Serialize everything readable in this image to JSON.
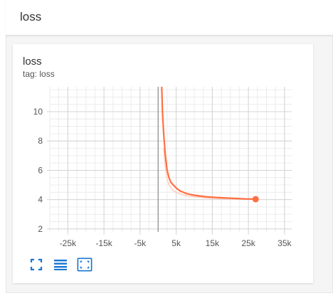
{
  "header": {
    "title": "loss"
  },
  "card": {
    "title": "loss",
    "tag": "tag: loss"
  },
  "toolbar": {
    "buttons": [
      {
        "icon": "fullscreen-icon"
      },
      {
        "icon": "list-lines-icon"
      },
      {
        "icon": "fit-domain-icon"
      }
    ]
  },
  "colors": {
    "accent": "#ff7043",
    "smoothed_raw": "#ffcdbd",
    "icon": "#1976d2"
  },
  "chart_data": {
    "type": "line",
    "title": "loss",
    "xlabel": "",
    "ylabel": "",
    "xlim": [
      -30000,
      37000
    ],
    "ylim": [
      1.8,
      11.7
    ],
    "x_ticks": [
      -25000,
      -15000,
      -5000,
      5000,
      15000,
      25000,
      35000
    ],
    "x_tick_labels": [
      "-25k",
      "-15k",
      "-5k",
      "5k",
      "15k",
      "25k",
      "35k"
    ],
    "y_ticks": [
      2,
      4,
      6,
      8,
      10
    ],
    "y_tick_labels": [
      "2",
      "4",
      "6",
      "8",
      "10"
    ],
    "grid": true,
    "series": [
      {
        "name": "",
        "style": "smoothed",
        "x": [
          900,
          1000,
          1200,
          1500,
          2000,
          2500,
          3000,
          3500,
          4000,
          5000,
          6000,
          8000,
          10000,
          13000,
          16000,
          20000,
          24000,
          27000
        ],
        "y": [
          12.2,
          11.7,
          10.0,
          8.6,
          7.0,
          6.0,
          5.5,
          5.2,
          5.05,
          4.8,
          4.6,
          4.4,
          4.3,
          4.2,
          4.15,
          4.1,
          4.05,
          4.03
        ]
      },
      {
        "name": "",
        "style": "raw",
        "x": [
          1500,
          2000,
          2500,
          3000,
          3500,
          4000,
          5000,
          6000,
          8000,
          10000,
          13000,
          16000,
          20000,
          24000
        ],
        "y": [
          7.5,
          6.2,
          5.4,
          5.0,
          4.8,
          4.65,
          4.5,
          4.4,
          4.25,
          4.2,
          4.12,
          4.08,
          4.05,
          4.02
        ]
      }
    ],
    "last_point": {
      "x": 27000,
      "y": 4.03
    }
  }
}
